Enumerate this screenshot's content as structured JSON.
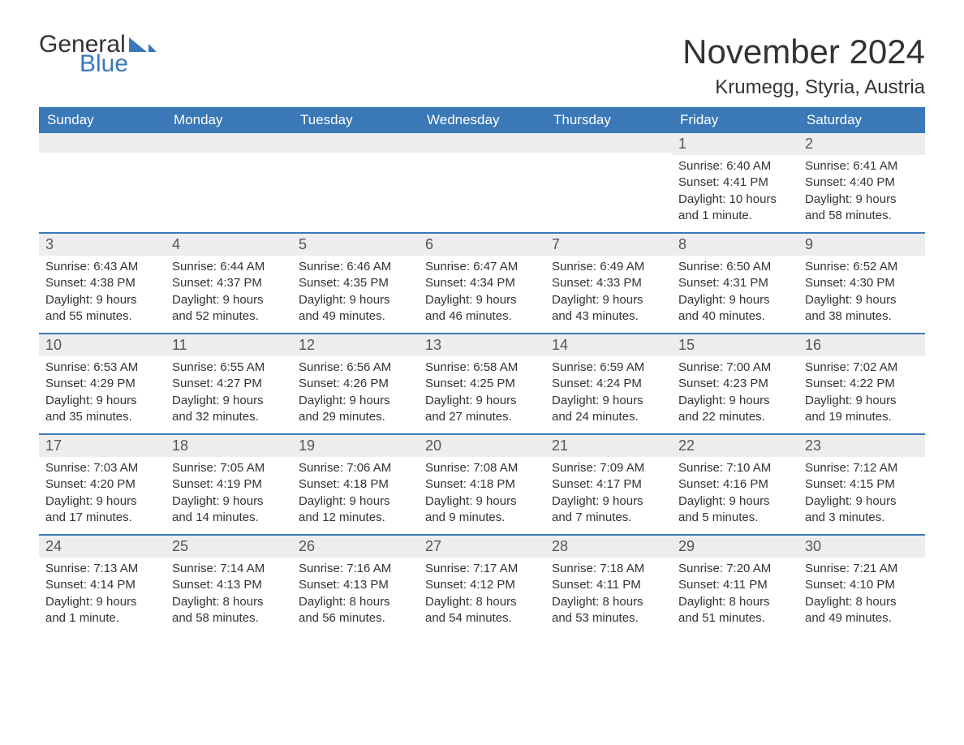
{
  "brand": {
    "word1": "General",
    "word2": "Blue",
    "word1_color": "#333333",
    "word2_color": "#3a78b8",
    "triangle_color": "#3a78b8",
    "font_size": 30
  },
  "header": {
    "month_title": "November 2024",
    "location": "Krumegg, Styria, Austria",
    "title_fontsize": 42,
    "location_fontsize": 24,
    "title_color": "#333333"
  },
  "calendar": {
    "type": "table",
    "header_bg": "#3a78b8",
    "header_fg": "#ffffff",
    "daynum_bg": "#ededed",
    "week_border_color": "#3a78b8",
    "body_fontsize": 15,
    "dow_fontsize": 17,
    "daynum_fontsize": 18,
    "days_of_week": [
      "Sunday",
      "Monday",
      "Tuesday",
      "Wednesday",
      "Thursday",
      "Friday",
      "Saturday"
    ],
    "weeks": [
      [
        {
          "daynum": "",
          "sunrise": "",
          "sunset": "",
          "daylight": ""
        },
        {
          "daynum": "",
          "sunrise": "",
          "sunset": "",
          "daylight": ""
        },
        {
          "daynum": "",
          "sunrise": "",
          "sunset": "",
          "daylight": ""
        },
        {
          "daynum": "",
          "sunrise": "",
          "sunset": "",
          "daylight": ""
        },
        {
          "daynum": "",
          "sunrise": "",
          "sunset": "",
          "daylight": ""
        },
        {
          "daynum": "1",
          "sunrise": "Sunrise: 6:40 AM",
          "sunset": "Sunset: 4:41 PM",
          "daylight": "Daylight: 10 hours and 1 minute."
        },
        {
          "daynum": "2",
          "sunrise": "Sunrise: 6:41 AM",
          "sunset": "Sunset: 4:40 PM",
          "daylight": "Daylight: 9 hours and 58 minutes."
        }
      ],
      [
        {
          "daynum": "3",
          "sunrise": "Sunrise: 6:43 AM",
          "sunset": "Sunset: 4:38 PM",
          "daylight": "Daylight: 9 hours and 55 minutes."
        },
        {
          "daynum": "4",
          "sunrise": "Sunrise: 6:44 AM",
          "sunset": "Sunset: 4:37 PM",
          "daylight": "Daylight: 9 hours and 52 minutes."
        },
        {
          "daynum": "5",
          "sunrise": "Sunrise: 6:46 AM",
          "sunset": "Sunset: 4:35 PM",
          "daylight": "Daylight: 9 hours and 49 minutes."
        },
        {
          "daynum": "6",
          "sunrise": "Sunrise: 6:47 AM",
          "sunset": "Sunset: 4:34 PM",
          "daylight": "Daylight: 9 hours and 46 minutes."
        },
        {
          "daynum": "7",
          "sunrise": "Sunrise: 6:49 AM",
          "sunset": "Sunset: 4:33 PM",
          "daylight": "Daylight: 9 hours and 43 minutes."
        },
        {
          "daynum": "8",
          "sunrise": "Sunrise: 6:50 AM",
          "sunset": "Sunset: 4:31 PM",
          "daylight": "Daylight: 9 hours and 40 minutes."
        },
        {
          "daynum": "9",
          "sunrise": "Sunrise: 6:52 AM",
          "sunset": "Sunset: 4:30 PM",
          "daylight": "Daylight: 9 hours and 38 minutes."
        }
      ],
      [
        {
          "daynum": "10",
          "sunrise": "Sunrise: 6:53 AM",
          "sunset": "Sunset: 4:29 PM",
          "daylight": "Daylight: 9 hours and 35 minutes."
        },
        {
          "daynum": "11",
          "sunrise": "Sunrise: 6:55 AM",
          "sunset": "Sunset: 4:27 PM",
          "daylight": "Daylight: 9 hours and 32 minutes."
        },
        {
          "daynum": "12",
          "sunrise": "Sunrise: 6:56 AM",
          "sunset": "Sunset: 4:26 PM",
          "daylight": "Daylight: 9 hours and 29 minutes."
        },
        {
          "daynum": "13",
          "sunrise": "Sunrise: 6:58 AM",
          "sunset": "Sunset: 4:25 PM",
          "daylight": "Daylight: 9 hours and 27 minutes."
        },
        {
          "daynum": "14",
          "sunrise": "Sunrise: 6:59 AM",
          "sunset": "Sunset: 4:24 PM",
          "daylight": "Daylight: 9 hours and 24 minutes."
        },
        {
          "daynum": "15",
          "sunrise": "Sunrise: 7:00 AM",
          "sunset": "Sunset: 4:23 PM",
          "daylight": "Daylight: 9 hours and 22 minutes."
        },
        {
          "daynum": "16",
          "sunrise": "Sunrise: 7:02 AM",
          "sunset": "Sunset: 4:22 PM",
          "daylight": "Daylight: 9 hours and 19 minutes."
        }
      ],
      [
        {
          "daynum": "17",
          "sunrise": "Sunrise: 7:03 AM",
          "sunset": "Sunset: 4:20 PM",
          "daylight": "Daylight: 9 hours and 17 minutes."
        },
        {
          "daynum": "18",
          "sunrise": "Sunrise: 7:05 AM",
          "sunset": "Sunset: 4:19 PM",
          "daylight": "Daylight: 9 hours and 14 minutes."
        },
        {
          "daynum": "19",
          "sunrise": "Sunrise: 7:06 AM",
          "sunset": "Sunset: 4:18 PM",
          "daylight": "Daylight: 9 hours and 12 minutes."
        },
        {
          "daynum": "20",
          "sunrise": "Sunrise: 7:08 AM",
          "sunset": "Sunset: 4:18 PM",
          "daylight": "Daylight: 9 hours and 9 minutes."
        },
        {
          "daynum": "21",
          "sunrise": "Sunrise: 7:09 AM",
          "sunset": "Sunset: 4:17 PM",
          "daylight": "Daylight: 9 hours and 7 minutes."
        },
        {
          "daynum": "22",
          "sunrise": "Sunrise: 7:10 AM",
          "sunset": "Sunset: 4:16 PM",
          "daylight": "Daylight: 9 hours and 5 minutes."
        },
        {
          "daynum": "23",
          "sunrise": "Sunrise: 7:12 AM",
          "sunset": "Sunset: 4:15 PM",
          "daylight": "Daylight: 9 hours and 3 minutes."
        }
      ],
      [
        {
          "daynum": "24",
          "sunrise": "Sunrise: 7:13 AM",
          "sunset": "Sunset: 4:14 PM",
          "daylight": "Daylight: 9 hours and 1 minute."
        },
        {
          "daynum": "25",
          "sunrise": "Sunrise: 7:14 AM",
          "sunset": "Sunset: 4:13 PM",
          "daylight": "Daylight: 8 hours and 58 minutes."
        },
        {
          "daynum": "26",
          "sunrise": "Sunrise: 7:16 AM",
          "sunset": "Sunset: 4:13 PM",
          "daylight": "Daylight: 8 hours and 56 minutes."
        },
        {
          "daynum": "27",
          "sunrise": "Sunrise: 7:17 AM",
          "sunset": "Sunset: 4:12 PM",
          "daylight": "Daylight: 8 hours and 54 minutes."
        },
        {
          "daynum": "28",
          "sunrise": "Sunrise: 7:18 AM",
          "sunset": "Sunset: 4:11 PM",
          "daylight": "Daylight: 8 hours and 53 minutes."
        },
        {
          "daynum": "29",
          "sunrise": "Sunrise: 7:20 AM",
          "sunset": "Sunset: 4:11 PM",
          "daylight": "Daylight: 8 hours and 51 minutes."
        },
        {
          "daynum": "30",
          "sunrise": "Sunrise: 7:21 AM",
          "sunset": "Sunset: 4:10 PM",
          "daylight": "Daylight: 8 hours and 49 minutes."
        }
      ]
    ]
  }
}
